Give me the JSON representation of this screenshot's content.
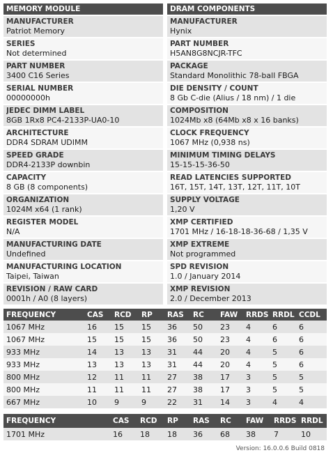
{
  "memory_module": {
    "title": "MEMORY MODULE",
    "rows": [
      {
        "label": "MANUFACTURER",
        "value": "Patriot Memory"
      },
      {
        "label": "SERIES",
        "value": "Not determined"
      },
      {
        "label": "PART NUMBER",
        "value": "3400 C16 Series"
      },
      {
        "label": "SERIAL NUMBER",
        "value": "00000000h"
      },
      {
        "label": "JEDEC DIMM LABEL",
        "value": "8GB 1Rx8 PC4-2133P-UA0-10"
      },
      {
        "label": "ARCHITECTURE",
        "value": "DDR4 SDRAM UDIMM"
      },
      {
        "label": "SPEED GRADE",
        "value": "DDR4-2133P downbin"
      },
      {
        "label": "CAPACITY",
        "value": "8 GB (8 components)"
      },
      {
        "label": "ORGANIZATION",
        "value": "1024M x64 (1 rank)"
      },
      {
        "label": "REGISTER MODEL",
        "value": "N/A"
      },
      {
        "label": "MANUFACTURING DATE",
        "value": "Undefined"
      },
      {
        "label": "MANUFACTURING LOCATION",
        "value": "Taipei, Taiwan"
      },
      {
        "label": "REVISION / RAW CARD",
        "value": "0001h / A0 (8 layers)"
      }
    ]
  },
  "dram_components": {
    "title": "DRAM COMPONENTS",
    "rows": [
      {
        "label": "MANUFACTURER",
        "value": "Hynix"
      },
      {
        "label": "PART NUMBER",
        "value": "H5AN8G8NCJR-TFC"
      },
      {
        "label": "PACKAGE",
        "value": "Standard Monolithic 78-ball FBGA"
      },
      {
        "label": "DIE DENSITY / COUNT",
        "value": "8 Gb C-die (Alius / 18 nm) / 1 die"
      },
      {
        "label": "COMPOSITION",
        "value": "1024Mb x8 (64Mb x8 x 16 banks)"
      },
      {
        "label": "CLOCK FREQUENCY",
        "value": "1067 MHz (0,938 ns)"
      },
      {
        "label": "MINIMUM TIMING DELAYS",
        "value": "15-15-15-36-50"
      },
      {
        "label": "READ LATENCIES SUPPORTED",
        "value": "16T, 15T, 14T, 13T, 12T, 11T, 10T"
      },
      {
        "label": "SUPPLY VOLTAGE",
        "value": "1,20 V"
      },
      {
        "label": "XMP CERTIFIED",
        "value": "1701 MHz / 16-18-18-36-68 / 1,35 V"
      },
      {
        "label": "XMP EXTREME",
        "value": "Not programmed"
      },
      {
        "label": "SPD REVISION",
        "value": "1.0 / January 2014"
      },
      {
        "label": "XMP REVISION",
        "value": "2.0 / December 2013"
      }
    ]
  },
  "jedec_timings": {
    "headers": [
      "FREQUENCY",
      "CAS",
      "RCD",
      "RP",
      "RAS",
      "RC",
      "FAW",
      "RRDS",
      "RRDL",
      "CCDL"
    ],
    "rows": [
      [
        "1067 MHz",
        "16",
        "15",
        "15",
        "36",
        "50",
        "23",
        "4",
        "6",
        "6"
      ],
      [
        "1067 MHz",
        "15",
        "15",
        "15",
        "36",
        "50",
        "23",
        "4",
        "6",
        "6"
      ],
      [
        "933 MHz",
        "14",
        "13",
        "13",
        "31",
        "44",
        "20",
        "4",
        "5",
        "6"
      ],
      [
        "933 MHz",
        "13",
        "13",
        "13",
        "31",
        "44",
        "20",
        "4",
        "5",
        "6"
      ],
      [
        "800 MHz",
        "12",
        "11",
        "11",
        "27",
        "38",
        "17",
        "3",
        "5",
        "5"
      ],
      [
        "800 MHz",
        "11",
        "11",
        "11",
        "27",
        "38",
        "17",
        "3",
        "5",
        "5"
      ],
      [
        "667 MHz",
        "10",
        "9",
        "9",
        "22",
        "31",
        "14",
        "3",
        "4",
        "4"
      ]
    ]
  },
  "xmp_timings": {
    "headers": [
      "FREQUENCY",
      "CAS",
      "RCD",
      "RP",
      "RAS",
      "RC",
      "FAW",
      "RRDS",
      "RRDL"
    ],
    "rows": [
      [
        "1701 MHz",
        "16",
        "18",
        "18",
        "36",
        "68",
        "38",
        "7",
        "10"
      ]
    ]
  },
  "version": "Version: 16.0.0.6 Build 0818"
}
